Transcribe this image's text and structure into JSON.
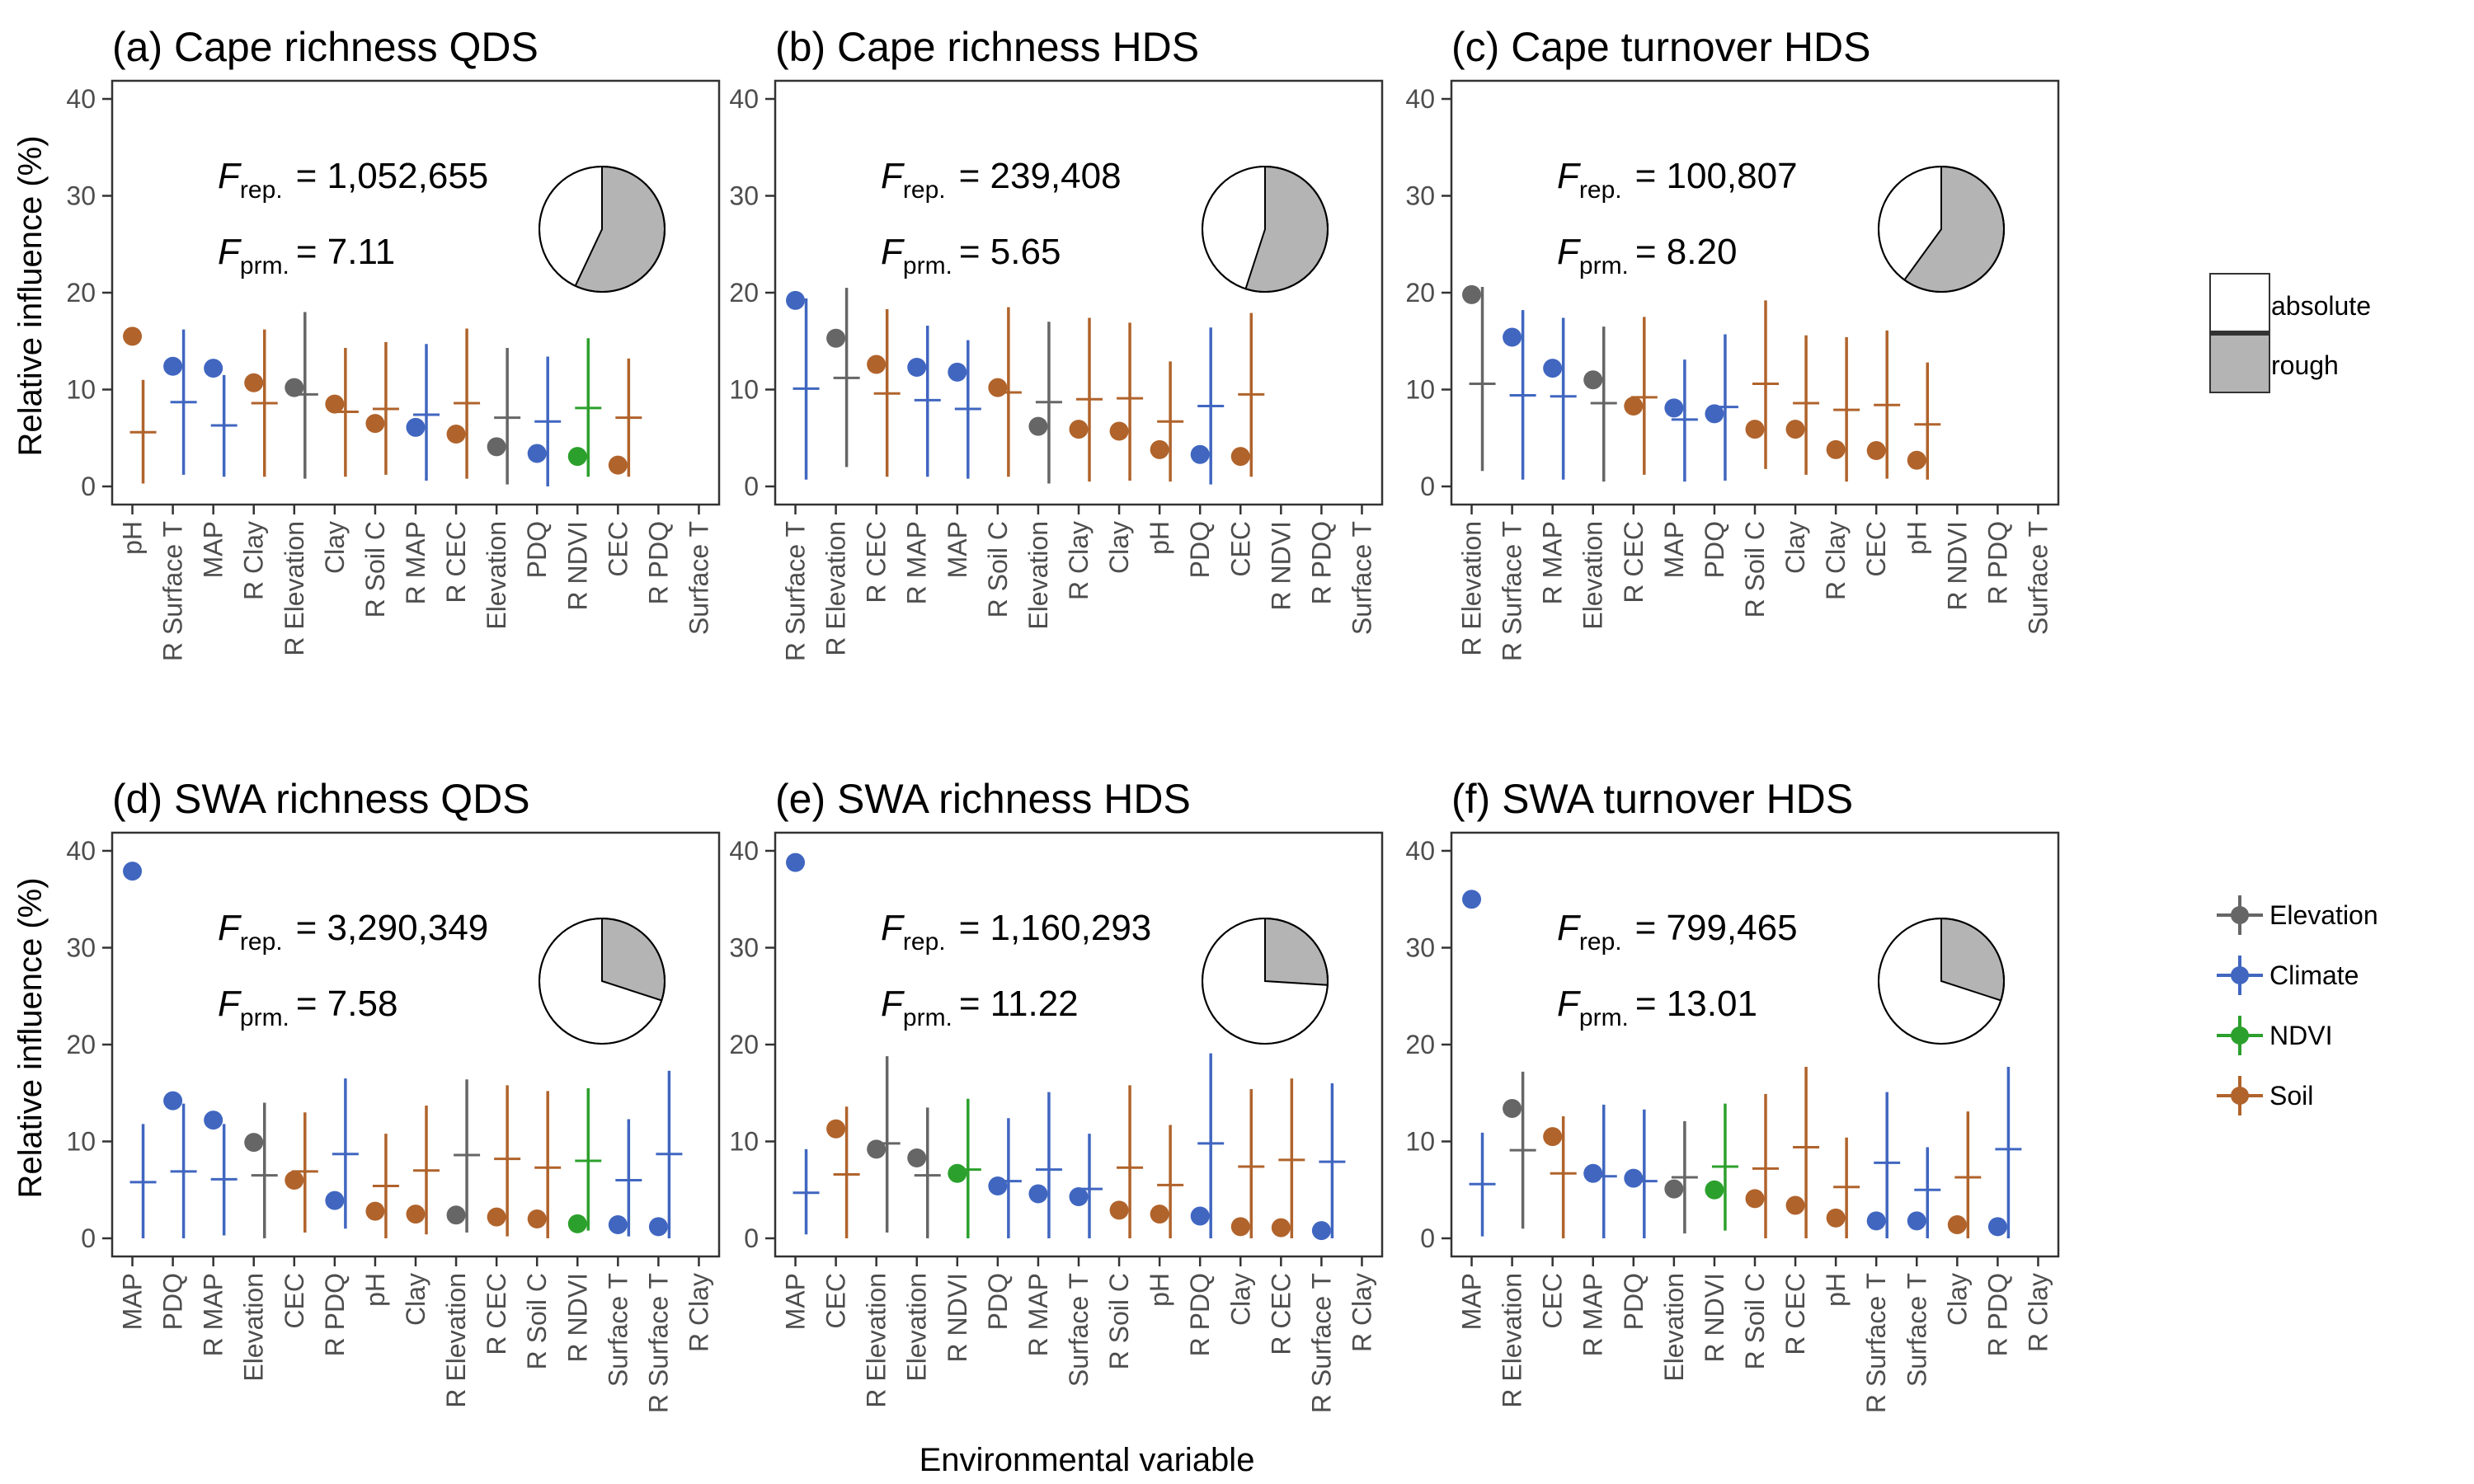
{
  "figure": {
    "y_axis_label": "Relative influence (%)",
    "x_axis_label": "Environmental variable",
    "f_rep_symbol": "F",
    "f_rep_subscript": "rep.",
    "f_prm_symbol": "F",
    "f_prm_subscript": "prm.",
    "y_ticks": [
      "0",
      "10",
      "20",
      "30",
      "40"
    ]
  },
  "legends": {
    "pie": [
      {
        "label": "absolute",
        "color": "#ffffff"
      },
      {
        "label": "rough",
        "color": "#b4b4b4"
      }
    ],
    "groups": [
      {
        "label": "Elevation",
        "color": "#666666"
      },
      {
        "label": "Climate",
        "color": "#4066c0"
      },
      {
        "label": "NDVI",
        "color": "#2ca02c"
      },
      {
        "label": "Soil",
        "color": "#b0632b"
      }
    ]
  },
  "chart_data": [
    {
      "type": "scatter",
      "title": "(a) Cape richness QDS",
      "f_rep_value": "= 1,052,655",
      "f_prm_value": "= 7.11",
      "ylim": [
        0,
        40
      ],
      "categories": [
        "pH",
        "R Surface T",
        "MAP",
        "R Clay",
        "R Elevation",
        "Clay",
        "R Soil C",
        "R MAP",
        "R CEC",
        "Elevation",
        "PDQ",
        "R NDVI",
        "CEC",
        "R PDQ",
        "Surface T"
      ],
      "groups": [
        "Soil",
        "Climate",
        "Climate",
        "Soil",
        "Elevation",
        "Soil",
        "Soil",
        "Climate",
        "Soil",
        "Elevation",
        "Climate",
        "NDVI",
        "Soil",
        "Climate",
        "Climate"
      ],
      "observed": [
        15.5,
        12.4,
        12.2,
        10.7,
        10.2,
        8.5,
        6.5,
        6.1,
        5.4,
        4.1,
        3.4,
        3.1,
        2.2,
        null,
        null
      ],
      "null_mean": [
        5.6,
        8.7,
        6.3,
        8.6,
        9.5,
        7.7,
        8.0,
        7.4,
        8.6,
        7.1,
        6.7,
        8.1,
        7.1,
        null,
        null
      ],
      "null_low": [
        0.3,
        1.2,
        1.0,
        1.0,
        0.8,
        1.0,
        1.2,
        0.6,
        0.8,
        0.2,
        0.0,
        1.0,
        1.0,
        null,
        null
      ],
      "null_high": [
        11.0,
        16.2,
        11.5,
        16.2,
        18.0,
        14.3,
        14.9,
        14.7,
        16.3,
        14.3,
        13.4,
        15.3,
        13.2,
        null,
        null
      ],
      "pie_rough_fraction": 0.57
    },
    {
      "type": "scatter",
      "title": "(b) Cape richness HDS",
      "f_rep_value": "= 239,408",
      "f_prm_value": "= 5.65",
      "ylim": [
        0,
        40
      ],
      "categories": [
        "R Surface T",
        "R Elevation",
        "R CEC",
        "R MAP",
        "MAP",
        "R Soil C",
        "Elevation",
        "R Clay",
        "Clay",
        "pH",
        "PDQ",
        "CEC",
        "R NDVI",
        "R PDQ",
        "Surface T"
      ],
      "groups": [
        "Climate",
        "Elevation",
        "Soil",
        "Climate",
        "Climate",
        "Soil",
        "Elevation",
        "Soil",
        "Soil",
        "Soil",
        "Climate",
        "Soil",
        "NDVI",
        "Climate",
        "Climate"
      ],
      "observed": [
        19.2,
        15.3,
        12.6,
        12.3,
        11.8,
        10.2,
        6.2,
        5.9,
        5.7,
        3.8,
        3.3,
        3.1,
        null,
        null,
        null
      ],
      "null_mean": [
        10.1,
        11.2,
        9.6,
        8.9,
        8.0,
        9.7,
        8.7,
        9.0,
        9.1,
        6.7,
        8.3,
        9.5,
        null,
        null,
        null
      ],
      "null_low": [
        0.7,
        2.0,
        1.0,
        1.0,
        0.8,
        1.0,
        0.3,
        0.5,
        0.6,
        0.5,
        0.2,
        1.0,
        null,
        null,
        null
      ],
      "null_high": [
        19.4,
        20.5,
        18.3,
        16.6,
        15.1,
        18.5,
        17.0,
        17.4,
        16.9,
        12.9,
        16.4,
        17.9,
        null,
        null,
        null
      ],
      "pie_rough_fraction": 0.55
    },
    {
      "type": "scatter",
      "title": "(c) Cape turnover HDS",
      "f_rep_value": "= 100,807",
      "f_prm_value": "= 8.20",
      "ylim": [
        0,
        40
      ],
      "categories": [
        "R Elevation",
        "R Surface T",
        "R MAP",
        "Elevation",
        "R CEC",
        "MAP",
        "PDQ",
        "R Soil C",
        "Clay",
        "R Clay",
        "CEC",
        "pH",
        "R NDVI",
        "R PDQ",
        "Surface T"
      ],
      "groups": [
        "Elevation",
        "Climate",
        "Climate",
        "Elevation",
        "Soil",
        "Climate",
        "Climate",
        "Soil",
        "Soil",
        "Soil",
        "Soil",
        "Soil",
        "NDVI",
        "Climate",
        "Climate"
      ],
      "observed": [
        19.8,
        15.4,
        12.2,
        11.0,
        8.3,
        8.1,
        7.5,
        5.9,
        5.9,
        3.8,
        3.7,
        2.7,
        null,
        null,
        null
      ],
      "null_mean": [
        10.6,
        9.4,
        9.3,
        8.6,
        9.2,
        6.9,
        8.2,
        10.6,
        8.6,
        7.9,
        8.4,
        6.4,
        null,
        null,
        null
      ],
      "null_low": [
        1.6,
        0.7,
        0.7,
        0.5,
        1.2,
        0.5,
        0.6,
        1.8,
        1.2,
        0.5,
        0.8,
        0.7,
        null,
        null,
        null
      ],
      "null_high": [
        20.6,
        18.2,
        17.4,
        16.5,
        17.5,
        13.1,
        15.7,
        19.2,
        15.6,
        15.4,
        16.1,
        12.8,
        null,
        null,
        null
      ],
      "pie_rough_fraction": 0.6
    },
    {
      "type": "scatter",
      "title": "(d) SWA richness QDS",
      "f_rep_value": "= 3,290,349",
      "f_prm_value": "= 7.58",
      "ylim": [
        0,
        40
      ],
      "categories": [
        "MAP",
        "PDQ",
        "R MAP",
        "Elevation",
        "CEC",
        "R PDQ",
        "pH",
        "Clay",
        "R Elevation",
        "R CEC",
        "R Soil C",
        "R NDVI",
        "Surface T",
        "R Surface T",
        "R Clay"
      ],
      "groups": [
        "Climate",
        "Climate",
        "Climate",
        "Elevation",
        "Soil",
        "Climate",
        "Soil",
        "Soil",
        "Elevation",
        "Soil",
        "Soil",
        "NDVI",
        "Climate",
        "Climate",
        "Soil"
      ],
      "observed": [
        37.9,
        14.2,
        12.2,
        9.9,
        6.0,
        3.9,
        2.8,
        2.5,
        2.4,
        2.2,
        2.0,
        1.5,
        1.4,
        1.2,
        null
      ],
      "null_mean": [
        5.8,
        6.9,
        6.1,
        6.5,
        6.9,
        8.7,
        5.4,
        7.0,
        8.6,
        8.2,
        7.3,
        8.0,
        6.0,
        8.7,
        null
      ],
      "null_low": [
        0.0,
        0.0,
        0.3,
        0.0,
        0.6,
        1.0,
        0.0,
        0.4,
        0.6,
        0.2,
        0.0,
        0.8,
        0.2,
        0.0,
        null
      ],
      "null_high": [
        11.8,
        13.9,
        11.8,
        14.0,
        13.0,
        16.5,
        10.8,
        13.7,
        16.4,
        15.8,
        15.2,
        15.5,
        12.3,
        17.3,
        null
      ],
      "pie_rough_fraction": 0.3
    },
    {
      "type": "scatter",
      "title": "(e) SWA richness HDS",
      "f_rep_value": "= 1,160,293",
      "f_prm_value": "= 11.22",
      "ylim": [
        0,
        40
      ],
      "categories": [
        "MAP",
        "CEC",
        "R Elevation",
        "Elevation",
        "R NDVI",
        "PDQ",
        "R MAP",
        "Surface T",
        "R Soil C",
        "pH",
        "R PDQ",
        "Clay",
        "R CEC",
        "R Surface T",
        "R Clay"
      ],
      "groups": [
        "Climate",
        "Soil",
        "Elevation",
        "Elevation",
        "NDVI",
        "Climate",
        "Climate",
        "Climate",
        "Soil",
        "Soil",
        "Climate",
        "Soil",
        "Soil",
        "Climate",
        "Soil"
      ],
      "observed": [
        38.8,
        11.3,
        9.2,
        8.3,
        6.7,
        5.4,
        4.6,
        4.3,
        2.9,
        2.5,
        2.3,
        1.2,
        1.1,
        0.8,
        null
      ],
      "null_mean": [
        4.7,
        6.6,
        9.8,
        6.5,
        7.1,
        5.9,
        7.1,
        5.1,
        7.3,
        5.5,
        9.8,
        7.4,
        8.1,
        7.9,
        null
      ],
      "null_low": [
        0.4,
        0.0,
        0.6,
        0.0,
        0.0,
        0.0,
        0.0,
        0.0,
        0.0,
        0.0,
        0.0,
        0.0,
        0.0,
        0.0,
        null
      ],
      "null_high": [
        9.2,
        13.6,
        18.8,
        13.5,
        14.4,
        12.4,
        15.1,
        10.8,
        15.8,
        11.7,
        19.1,
        15.4,
        16.5,
        16.0,
        null
      ],
      "pie_rough_fraction": 0.26
    },
    {
      "type": "scatter",
      "title": "(f) SWA turnover HDS",
      "f_rep_value": "= 799,465",
      "f_prm_value": "= 13.01",
      "ylim": [
        0,
        40
      ],
      "categories": [
        "MAP",
        "R Elevation",
        "CEC",
        "R MAP",
        "PDQ",
        "Elevation",
        "R NDVI",
        "R Soil C",
        "R CEC",
        "pH",
        "R Surface T",
        "Surface T",
        "Clay",
        "R PDQ",
        "R Clay"
      ],
      "groups": [
        "Climate",
        "Elevation",
        "Soil",
        "Climate",
        "Climate",
        "Elevation",
        "NDVI",
        "Soil",
        "Soil",
        "Soil",
        "Climate",
        "Climate",
        "Soil",
        "Climate",
        "Soil"
      ],
      "observed": [
        35.0,
        13.4,
        10.5,
        6.7,
        6.2,
        5.1,
        5.0,
        4.1,
        3.4,
        2.1,
        1.8,
        1.8,
        1.4,
        1.2,
        null
      ],
      "null_mean": [
        5.6,
        9.1,
        6.7,
        6.4,
        5.9,
        6.3,
        7.4,
        7.2,
        9.4,
        5.3,
        7.8,
        5.0,
        6.3,
        9.2,
        null
      ],
      "null_low": [
        0.2,
        1.0,
        0.0,
        0.0,
        0.0,
        0.5,
        0.8,
        0.0,
        0.0,
        0.0,
        0.0,
        0.0,
        0.0,
        0.0,
        null
      ],
      "null_high": [
        10.9,
        17.2,
        12.6,
        13.8,
        13.3,
        12.1,
        13.9,
        14.9,
        17.7,
        10.4,
        15.1,
        9.4,
        13.1,
        17.7,
        null
      ],
      "pie_rough_fraction": 0.3
    }
  ]
}
